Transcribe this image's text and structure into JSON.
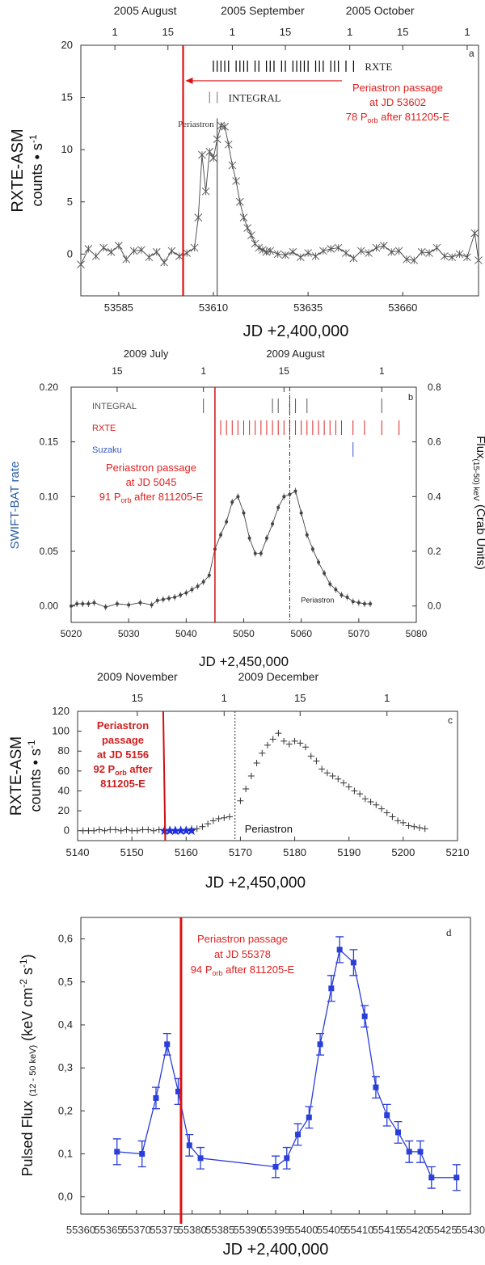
{
  "chart_data": [
    {
      "id": "a",
      "type": "line",
      "panel_label": "a",
      "xlabel": "JD +2,400,000",
      "ylabel_line1": "RXTE-ASM",
      "ylabel_line2": "counts • s",
      "ylabel_sup": "-1",
      "xlim": [
        53575,
        53680
      ],
      "ylim": [
        -4,
        20
      ],
      "xticks": [
        53585,
        53610,
        53635,
        53660
      ],
      "yticks": [
        0,
        5,
        10,
        15,
        20
      ],
      "top_ticks": [
        {
          "label": "1",
          "jd": 53584
        },
        {
          "label": "15",
          "jd": 53598
        },
        {
          "label": "1",
          "jd": 53615
        },
        {
          "label": "15",
          "jd": 53629
        },
        {
          "label": "1",
          "jd": 53646
        },
        {
          "label": "15",
          "jd": 53660
        },
        {
          "label": "1",
          "jd": 53677
        }
      ],
      "months": [
        {
          "label": "2005 August",
          "jd": 53592
        },
        {
          "label": "2005 September",
          "jd": 53623
        },
        {
          "label": "2005 October",
          "jd": 53654
        }
      ],
      "marker": "x",
      "series": [
        {
          "name": "RXTE-ASM",
          "x": [
            53575,
            53577,
            53579,
            53581,
            53583,
            53585,
            53587,
            53589,
            53591,
            53593,
            53595,
            53597,
            53599,
            53601,
            53603,
            53605,
            53606,
            53607,
            53608,
            53609,
            53610,
            53611,
            53612,
            53613,
            53614,
            53615,
            53616,
            53617,
            53618,
            53619,
            53620,
            53621,
            53622,
            53623,
            53624,
            53625,
            53627,
            53629,
            53631,
            53633,
            53635,
            53637,
            53639,
            53641,
            53643,
            53645,
            53647,
            53649,
            53651,
            53653,
            53655,
            53657,
            53659,
            53661,
            53663,
            53665,
            53667,
            53669,
            53671,
            53673,
            53675,
            53677,
            53679,
            53680
          ],
          "y": [
            -1,
            0.5,
            -0.2,
            0.6,
            0.2,
            0.8,
            -0.5,
            0.3,
            0.4,
            -0.3,
            0.2,
            -0.8,
            0.3,
            -0.2,
            0.1,
            0.6,
            3.5,
            9.5,
            6,
            9.8,
            9.2,
            11,
            12.3,
            12.2,
            10.5,
            8.5,
            7,
            5,
            3.5,
            2.5,
            1.8,
            1,
            0.6,
            0.4,
            0.2,
            0.3,
            0,
            -0.1,
            0.2,
            -0.3,
            0.1,
            -0.2,
            0.3,
            0.5,
            0.6,
            0.1,
            -0.4,
            0.3,
            0.1,
            0.6,
            0.8,
            0.2,
            0.3,
            -0.5,
            -0.6,
            0.2,
            0.1,
            0.6,
            -0.2,
            -0.3,
            0,
            -0.3,
            2,
            -0.6
          ]
        }
      ],
      "vline_red": 53602,
      "vline_black": 53611,
      "periastron_label": "Periastron",
      "obs_rows": [
        {
          "label": "RXTE",
          "y": 18,
          "color": "#000000",
          "ticks": [
            53610,
            53611,
            53612,
            53613,
            53614,
            53616,
            53617,
            53618,
            53619,
            53621,
            53622,
            53624,
            53625,
            53626,
            53628,
            53629,
            53631,
            53632,
            53633,
            53634,
            53635,
            53637,
            53638,
            53639,
            53641,
            53642,
            53643,
            53645,
            53647
          ]
        },
        {
          "label": "INTEGRAL",
          "y": 15,
          "color": "#888888",
          "ticks": [
            53609,
            53611
          ]
        }
      ],
      "annotation": {
        "line1": "Periastron passage",
        "line2": "at JD 53602",
        "line3_pre": "78 P",
        "line3_sub": "orb",
        "line3_post": " after 811205-E"
      }
    },
    {
      "id": "b",
      "type": "line",
      "panel_label": "b",
      "xlabel": "JD +2,450,000",
      "ylabel": "SWIFT-BAT rate",
      "ylabel_right_pre": "Flux",
      "ylabel_right_sub": "(15-50) keV",
      "ylabel_right_post": " (Crab Units)",
      "xlim": [
        5020,
        5080
      ],
      "ylim": [
        -0.015,
        0.2
      ],
      "xticks": [
        5020,
        5030,
        5040,
        5050,
        5060,
        5070,
        5080
      ],
      "yticks": [
        0.0,
        0.05,
        0.1,
        0.15,
        0.2
      ],
      "yticks_labels": [
        "0.00",
        "0.05",
        "0.10",
        "0.15",
        "0.20"
      ],
      "right_ticks": [
        "0.0",
        "0.2",
        "0.4",
        "0.6",
        "0.8"
      ],
      "top_ticks": [
        {
          "label": "15",
          "jd": 5028
        },
        {
          "label": "1",
          "jd": 5043
        },
        {
          "label": "15",
          "jd": 5057
        },
        {
          "label": "1",
          "jd": 5074
        }
      ],
      "months": [
        {
          "label": "2009 July",
          "jd": 5033
        },
        {
          "label": "2009 August",
          "jd": 5059
        }
      ],
      "series": [
        {
          "name": "SWIFT-BAT",
          "x": [
            5020,
            5021,
            5022,
            5023,
            5024,
            5026,
            5028,
            5030,
            5032,
            5034,
            5035,
            5036,
            5037,
            5038,
            5039,
            5040,
            5041,
            5042,
            5043,
            5044,
            5045,
            5046,
            5047,
            5048,
            5049,
            5050,
            5051,
            5052,
            5053,
            5054,
            5055,
            5056,
            5057,
            5058,
            5059,
            5060,
            5061,
            5062,
            5063,
            5064,
            5065,
            5066,
            5067,
            5068,
            5069,
            5070,
            5071,
            5072
          ],
          "y": [
            0.0,
            0.002,
            0.002,
            0.002,
            0.003,
            -0.001,
            0.002,
            0.001,
            0.003,
            0.001,
            0.005,
            0.006,
            0.007,
            0.008,
            0.01,
            0.012,
            0.015,
            0.018,
            0.022,
            0.028,
            0.052,
            0.065,
            0.077,
            0.095,
            0.1,
            0.085,
            0.062,
            0.048,
            0.048,
            0.062,
            0.075,
            0.09,
            0.1,
            0.102,
            0.105,
            0.085,
            0.065,
            0.052,
            0.04,
            0.03,
            0.02,
            0.015,
            0.01,
            0.008,
            0.004,
            0.003,
            0.002,
            0.002
          ]
        }
      ],
      "vline_red": 5045,
      "vline_black": 5058,
      "periastron_label": "Periastron",
      "obs_rows": [
        {
          "label": "INTEGRAL",
          "y": 0.183,
          "color": "#555555",
          "ticks": [
            5043,
            5055,
            5056,
            5058,
            5059,
            5061,
            5074
          ]
        },
        {
          "label": "RXTE",
          "y": 0.163,
          "color": "#dd2222",
          "ticks": [
            5046,
            5047,
            5048,
            5049,
            5050,
            5051,
            5052,
            5053,
            5054,
            5055,
            5056,
            5057,
            5058,
            5059,
            5060,
            5061,
            5062,
            5063,
            5064,
            5065,
            5066,
            5067,
            5069,
            5071,
            5074,
            5077
          ]
        },
        {
          "label": "Suzaku",
          "y": 0.143,
          "color": "#3355cc",
          "ticks": [
            5069
          ]
        }
      ],
      "annotation": {
        "line1": "Periastron passage",
        "line2": "at JD 5045",
        "line3_pre": "91 P",
        "line3_sub": "orb",
        "line3_post": " after 811205-E"
      }
    },
    {
      "id": "c",
      "type": "line",
      "panel_label": "c",
      "xlabel": "JD +2,450,000",
      "ylabel_line1": "RXTE-ASM",
      "ylabel_line2": "counts • s",
      "ylabel_sup": "-1",
      "xlim": [
        5140,
        5210
      ],
      "ylim": [
        -10,
        120
      ],
      "xticks": [
        5140,
        5150,
        5160,
        5170,
        5180,
        5190,
        5200,
        5210
      ],
      "yticks": [
        0,
        20,
        40,
        60,
        80,
        100,
        120
      ],
      "top_ticks": [
        {
          "label": "15",
          "jd": 5151
        },
        {
          "label": "1",
          "jd": 5167
        },
        {
          "label": "15",
          "jd": 5181
        },
        {
          "label": "1",
          "jd": 5197
        }
      ],
      "months": [
        {
          "label": "2009 November",
          "jd": 5151
        },
        {
          "label": "2009 December",
          "jd": 5177
        }
      ],
      "marker": "+",
      "series": [
        {
          "name": "RXTE-ASM",
          "x": [
            5141,
            5142,
            5143,
            5144,
            5145,
            5146,
            5147,
            5148,
            5149,
            5150,
            5151,
            5152,
            5153,
            5154,
            5155,
            5156,
            5157,
            5158,
            5159,
            5160,
            5161,
            5162,
            5163,
            5164,
            5165,
            5166,
            5167,
            5168,
            5170,
            5171,
            5172,
            5173,
            5174,
            5175,
            5176,
            5177,
            5178,
            5179,
            5180,
            5181,
            5182,
            5183,
            5184,
            5185,
            5186,
            5187,
            5188,
            5189,
            5190,
            5191,
            5192,
            5193,
            5194,
            5195,
            5196,
            5197,
            5198,
            5199,
            5200,
            5201,
            5202,
            5203,
            5204
          ],
          "y": [
            0,
            0,
            0,
            1,
            0,
            1,
            1,
            0,
            1,
            0,
            0,
            1,
            1,
            0,
            1,
            0,
            1,
            0,
            1,
            1,
            2,
            2,
            4,
            7,
            10,
            12,
            13,
            14,
            30,
            42,
            55,
            68,
            78,
            86,
            92,
            98,
            90,
            87,
            90,
            88,
            84,
            75,
            70,
            62,
            58,
            55,
            52,
            48,
            44,
            40,
            37,
            32,
            29,
            26,
            22,
            18,
            14,
            10,
            8,
            5,
            4,
            3,
            2
          ]
        }
      ],
      "suzaku_stars": [
        5156,
        5157,
        5158,
        5159,
        5160,
        5161
      ],
      "vline_red": 5156,
      "vline_black": 5169,
      "periastron_label": "Periastron",
      "annotation": {
        "line1": "Periastron",
        "line2": "passage",
        "line3": "at JD 5156",
        "line4_pre": "92 P",
        "line4_sub": "orb",
        "line4_post": " after",
        "line5": "811205-E"
      }
    },
    {
      "id": "d",
      "type": "line",
      "panel_label": "d",
      "xlabel": "JD +2,400,000",
      "ylabel_pre": "Pulsed Flux ",
      "ylabel_sub": "(12 - 50 keV)",
      "ylabel_post": " (keV cm",
      "ylabel_sup1": "-2",
      "ylabel_mid": " s",
      "ylabel_sup2": "-1",
      "ylabel_end": ")",
      "xlim": [
        55360,
        55430
      ],
      "ylim": [
        -0.04,
        0.65
      ],
      "xticks": [
        55360,
        55365,
        55370,
        55375,
        55380,
        55385,
        55390,
        55395,
        55400,
        55405,
        55410,
        55415,
        55420,
        55425,
        55430
      ],
      "yticks": [
        0.0,
        0.1,
        0.2,
        0.3,
        0.4,
        0.5,
        0.6
      ],
      "yticks_labels": [
        "0,0",
        "0,1",
        "0,2",
        "0,3",
        "0,4",
        "0,5",
        "0,6"
      ],
      "series": [
        {
          "name": "Pulsed Flux",
          "x": [
            55366.5,
            55371,
            55373.5,
            55375.5,
            55377.5,
            55379.5,
            55381.5,
            55395,
            55397,
            55399,
            55401,
            55403,
            55405,
            55406.5,
            55409,
            55411,
            55413,
            55415,
            55417,
            55419,
            55421,
            55423,
            55427.5
          ],
          "y": [
            0.105,
            0.1,
            0.23,
            0.355,
            0.245,
            0.12,
            0.09,
            0.07,
            0.09,
            0.145,
            0.185,
            0.355,
            0.485,
            0.575,
            0.545,
            0.42,
            0.255,
            0.19,
            0.15,
            0.105,
            0.105,
            0.045,
            0.045
          ],
          "err": [
            0.03,
            0.03,
            0.025,
            0.025,
            0.03,
            0.025,
            0.025,
            0.025,
            0.025,
            0.025,
            0.025,
            0.025,
            0.03,
            0.03,
            0.03,
            0.025,
            0.025,
            0.025,
            0.025,
            0.025,
            0.025,
            0.025,
            0.03
          ]
        }
      ],
      "vline_red": 55378,
      "annotation": {
        "line1": "Periastron passage",
        "line2": "at JD 55378",
        "line3_pre": "94 P",
        "line3_sub": "orb",
        "line3_post": " after 811205-E"
      }
    }
  ]
}
